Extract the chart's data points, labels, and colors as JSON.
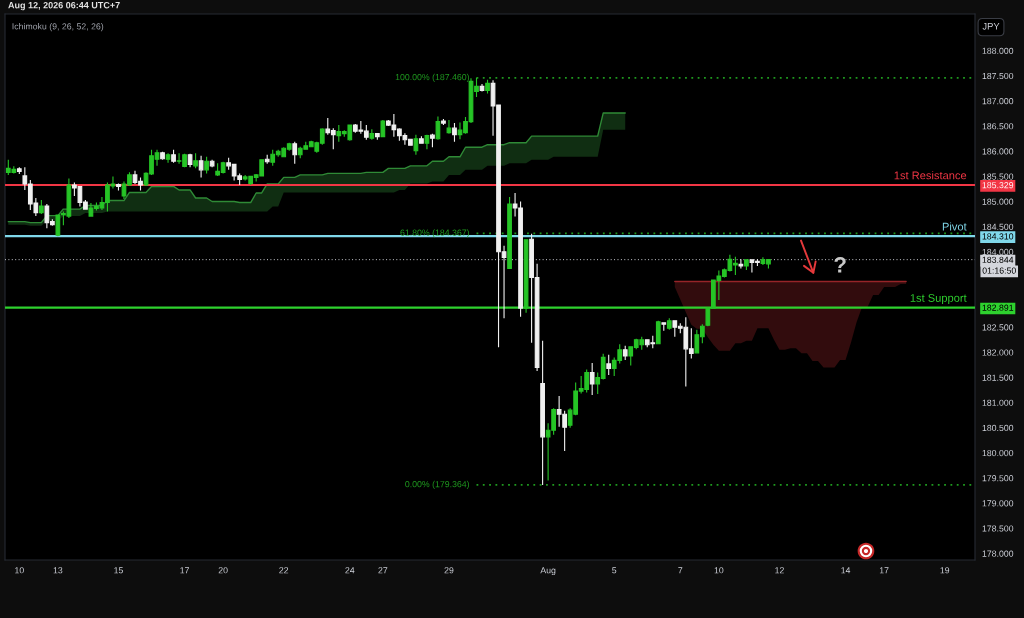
{
  "chart_data": {
    "type": "candlestick",
    "title": "Aug 12, 2026 06:44 UTC+7",
    "ylabel": "JPY",
    "categories": [
      null,
      null,
      "10",
      null,
      null,
      null,
      null,
      null,
      null,
      "13",
      null,
      null,
      null,
      null,
      null,
      null,
      null,
      null,
      null,
      null,
      "15",
      null,
      null,
      null,
      null,
      null,
      null,
      null,
      null,
      null,
      null,
      null,
      "17",
      null,
      null,
      null,
      null,
      null,
      null,
      "20",
      null,
      null,
      null,
      null,
      null,
      null,
      null,
      null,
      null,
      null,
      "22",
      null,
      null,
      null,
      null,
      null,
      null,
      null,
      null,
      null,
      null,
      null,
      "24",
      null,
      null,
      null,
      null,
      null,
      "27",
      null,
      null,
      null,
      null,
      null,
      null,
      null,
      null,
      null,
      null,
      null,
      "29",
      null,
      null,
      null,
      null,
      null,
      null,
      null,
      null,
      null,
      null,
      null,
      null,
      null,
      null,
      null,
      null,
      null,
      "Aug",
      null,
      null,
      null,
      null,
      null,
      null,
      null,
      null,
      null,
      null,
      null,
      "5",
      null,
      null,
      null,
      null,
      null,
      null,
      null,
      null,
      null,
      null,
      null,
      "7",
      null,
      null,
      null,
      null,
      null,
      null,
      "10",
      null,
      null,
      null,
      null,
      null,
      null,
      null,
      null,
      null,
      null,
      "12",
      null,
      null,
      null,
      null,
      null,
      null,
      null,
      null,
      null,
      null,
      null,
      "14",
      null,
      null,
      null,
      null,
      null,
      null,
      "17",
      null,
      null,
      null,
      null,
      null,
      null,
      null,
      null,
      null,
      null,
      "19",
      null,
      null,
      null,
      null,
      null
    ],
    "ohlc": [
      [
        185.58,
        185.83,
        185.53,
        185.66
      ],
      [
        185.58,
        185.7,
        185.56,
        185.64
      ],
      [
        185.65,
        185.68,
        185.55,
        185.6
      ],
      [
        185.51,
        185.68,
        185.23,
        185.35
      ],
      [
        185.35,
        185.43,
        184.83,
        184.95
      ],
      [
        184.97,
        185.07,
        184.71,
        184.78
      ],
      [
        184.78,
        185.03,
        184.75,
        184.91
      ],
      [
        184.91,
        184.95,
        184.47,
        184.58
      ],
      [
        184.6,
        184.65,
        184.52,
        184.54
      ],
      [
        184.33,
        184.73,
        184.31,
        184.73
      ],
      [
        184.74,
        184.8,
        184.53,
        184.76
      ],
      [
        184.71,
        185.46,
        184.67,
        185.33
      ],
      [
        185.33,
        185.38,
        185.11,
        185.27
      ],
      [
        185.3,
        185.31,
        184.9,
        184.98
      ],
      [
        184.99,
        185.03,
        184.85,
        184.85
      ],
      [
        184.71,
        184.97,
        184.7,
        184.87
      ],
      [
        184.86,
        184.98,
        184.82,
        184.9
      ],
      [
        184.87,
        185.09,
        184.83,
        184.98
      ],
      [
        184.98,
        185.38,
        184.8,
        185.33
      ],
      [
        185.31,
        185.5,
        185.26,
        185.35
      ],
      [
        185.34,
        185.36,
        185.22,
        185.3
      ],
      [
        185.11,
        185.4,
        185.05,
        185.35
      ],
      [
        185.33,
        185.58,
        185.31,
        185.53
      ],
      [
        185.53,
        185.61,
        185.35,
        185.38
      ],
      [
        185.4,
        185.48,
        185.22,
        185.33
      ],
      [
        185.33,
        185.58,
        185.31,
        185.56
      ],
      [
        185.55,
        186.03,
        185.53,
        185.91
      ],
      [
        185.84,
        186.03,
        185.71,
        185.97
      ],
      [
        185.97,
        185.99,
        185.83,
        185.85
      ],
      [
        185.84,
        185.96,
        185.77,
        185.93
      ],
      [
        185.93,
        186.03,
        185.77,
        185.8
      ],
      [
        185.8,
        185.96,
        185.75,
        185.81
      ],
      [
        185.7,
        185.95,
        185.68,
        185.93
      ],
      [
        185.93,
        185.95,
        185.68,
        185.74
      ],
      [
        185.71,
        185.96,
        185.66,
        185.81
      ],
      [
        185.81,
        185.91,
        185.48,
        185.63
      ],
      [
        185.63,
        185.89,
        185.56,
        185.8
      ],
      [
        185.8,
        185.83,
        185.68,
        185.71
      ],
      [
        185.53,
        185.76,
        185.51,
        185.6
      ],
      [
        185.58,
        185.79,
        185.56,
        185.77
      ],
      [
        185.77,
        185.87,
        185.63,
        185.71
      ],
      [
        185.74,
        185.75,
        185.42,
        185.51
      ],
      [
        185.51,
        185.56,
        185.33,
        185.44
      ],
      [
        185.45,
        185.53,
        185.42,
        185.49
      ],
      [
        185.36,
        185.51,
        185.33,
        185.5
      ],
      [
        185.48,
        185.55,
        185.4,
        185.53
      ],
      [
        185.51,
        185.84,
        185.5,
        185.83
      ],
      [
        185.84,
        185.93,
        185.75,
        185.79
      ],
      [
        185.78,
        186.03,
        185.71,
        185.94
      ],
      [
        185.93,
        186.03,
        185.89,
        186.0
      ],
      [
        185.89,
        186.08,
        185.88,
        186.06
      ],
      [
        186.04,
        186.17,
        186.01,
        186.15
      ],
      [
        186.15,
        186.19,
        185.75,
        185.93
      ],
      [
        185.93,
        186.09,
        185.86,
        186.06
      ],
      [
        186.04,
        186.19,
        186.03,
        186.11
      ],
      [
        186.09,
        186.21,
        186.08,
        186.19
      ],
      [
        186.0,
        186.19,
        185.97,
        186.17
      ],
      [
        186.16,
        186.46,
        186.13,
        186.44
      ],
      [
        186.44,
        186.66,
        186.33,
        186.37
      ],
      [
        186.41,
        186.46,
        186.04,
        186.33
      ],
      [
        186.31,
        186.52,
        186.19,
        186.39
      ],
      [
        186.35,
        186.42,
        186.29,
        186.39
      ],
      [
        186.23,
        186.52,
        186.21,
        186.52
      ],
      [
        186.52,
        186.54,
        186.37,
        186.4
      ],
      [
        186.42,
        186.6,
        186.35,
        186.4
      ],
      [
        186.4,
        186.52,
        186.23,
        186.28
      ],
      [
        186.26,
        186.44,
        186.23,
        186.35
      ],
      [
        186.35,
        186.36,
        186.23,
        186.29
      ],
      [
        186.29,
        186.62,
        186.28,
        186.6
      ],
      [
        186.6,
        186.62,
        186.5,
        186.52
      ],
      [
        186.52,
        186.74,
        186.29,
        186.43
      ],
      [
        186.44,
        186.46,
        186.21,
        186.31
      ],
      [
        186.31,
        186.36,
        186.13,
        186.23
      ],
      [
        186.24,
        186.25,
        186.11,
        186.12
      ],
      [
        186.01,
        186.33,
        185.93,
        186.25
      ],
      [
        186.25,
        186.3,
        186.15,
        186.16
      ],
      [
        186.16,
        186.33,
        186.04,
        186.31
      ],
      [
        186.32,
        186.35,
        186.08,
        186.26
      ],
      [
        186.25,
        186.69,
        186.23,
        186.59
      ],
      [
        186.6,
        186.64,
        186.52,
        186.56
      ],
      [
        186.37,
        186.62,
        186.35,
        186.46
      ],
      [
        186.46,
        186.56,
        186.19,
        186.33
      ],
      [
        186.33,
        186.57,
        186.24,
        186.42
      ],
      [
        186.37,
        186.68,
        186.35,
        186.59
      ],
      [
        186.59,
        187.45,
        186.56,
        187.39
      ],
      [
        187.19,
        187.46,
        187.08,
        187.29
      ],
      [
        187.29,
        187.34,
        187.19,
        187.21
      ],
      [
        187.21,
        187.42,
        187.15,
        187.35
      ],
      [
        187.35,
        187.41,
        186.31,
        186.9
      ],
      [
        186.92,
        186.92,
        182.1,
        184.0
      ],
      [
        184.0,
        184.12,
        182.68,
        183.89
      ],
      [
        183.67,
        185.09,
        183.67,
        184.95
      ],
      [
        184.95,
        185.17,
        184.7,
        184.87
      ],
      [
        184.87,
        185.0,
        182.71,
        182.88
      ],
      [
        182.88,
        184.24,
        182.79,
        184.24
      ],
      [
        184.25,
        184.36,
        182.19,
        183.49
      ],
      [
        183.49,
        183.76,
        181.63,
        181.7
      ],
      [
        181.38,
        182.23,
        179.364,
        180.32
      ],
      [
        180.32,
        180.59,
        179.45,
        180.45
      ],
      [
        180.45,
        180.89,
        180.36,
        180.86
      ],
      [
        180.86,
        181.13,
        180.52,
        180.77
      ],
      [
        180.77,
        180.84,
        180.04,
        180.51
      ],
      [
        180.55,
        180.89,
        180.5,
        180.85
      ],
      [
        180.77,
        181.4,
        180.75,
        181.23
      ],
      [
        181.23,
        181.53,
        181.18,
        181.28
      ],
      [
        181.26,
        181.66,
        181.2,
        181.6
      ],
      [
        181.6,
        181.79,
        181.15,
        181.37
      ],
      [
        181.37,
        181.6,
        181.17,
        181.5
      ],
      [
        181.48,
        181.97,
        181.46,
        181.9
      ],
      [
        181.77,
        181.95,
        181.55,
        181.68
      ],
      [
        181.68,
        181.9,
        181.53,
        181.84
      ],
      [
        181.84,
        182.16,
        181.78,
        182.05
      ],
      [
        182.05,
        182.13,
        181.85,
        181.93
      ],
      [
        181.93,
        182.11,
        181.74,
        182.11
      ],
      [
        182.1,
        182.27,
        182.06,
        182.25
      ],
      [
        182.15,
        182.31,
        182.05,
        182.25
      ],
      [
        182.25,
        182.26,
        182.1,
        182.15
      ],
      [
        182.19,
        182.33,
        182.08,
        182.17
      ],
      [
        182.17,
        182.63,
        182.17,
        182.61
      ],
      [
        182.59,
        182.59,
        182.43,
        182.56
      ],
      [
        182.48,
        182.68,
        182.45,
        182.63
      ],
      [
        182.63,
        182.63,
        182.31,
        182.5
      ],
      [
        182.52,
        182.58,
        182.38,
        182.48
      ],
      [
        182.5,
        182.7,
        181.32,
        182.07
      ],
      [
        182.07,
        182.48,
        181.88,
        181.98
      ],
      [
        181.99,
        182.45,
        181.98,
        182.35
      ],
      [
        182.31,
        182.56,
        182.18,
        182.52
      ],
      [
        182.54,
        182.9,
        182.52,
        182.88
      ],
      [
        182.88,
        183.45,
        182.88,
        183.44
      ],
      [
        183.43,
        183.63,
        183.04,
        183.52
      ],
      [
        183.51,
        183.67,
        183.49,
        183.64
      ],
      [
        183.63,
        183.94,
        183.61,
        183.85
      ],
      [
        183.74,
        183.9,
        183.54,
        183.77
      ],
      [
        183.75,
        183.85,
        183.67,
        183.72
      ],
      [
        183.72,
        183.85,
        183.64,
        183.84
      ],
      [
        183.84,
        183.85,
        183.59,
        183.79
      ],
      [
        183.81,
        183.85,
        183.72,
        183.79
      ],
      [
        183.77,
        183.89,
        183.74,
        183.84
      ],
      [
        183.76,
        183.85,
        183.67,
        183.844
      ],
      null,
      null,
      null,
      null,
      null,
      null,
      null,
      null,
      null,
      null,
      null,
      null,
      null,
      null,
      null,
      null,
      null,
      null,
      null,
      null,
      null,
      null,
      null,
      null,
      null,
      null,
      null,
      null,
      null,
      null,
      null,
      null,
      null,
      null,
      null,
      null,
      null
    ],
    "colors": [
      "#26c426",
      "#26c426",
      "#f0f0f0",
      "#f0f0f0",
      "#f0f0f0",
      "#f0f0f0",
      "#26c426",
      "#f0f0f0",
      "#f0f0f0",
      "#26c426",
      "#26c426",
      "#26c426",
      "#f0f0f0",
      "#f0f0f0",
      "#f0f0f0",
      "#26c426",
      "#26c426",
      "#26c426",
      "#26c426",
      "#26c426",
      "#f0f0f0",
      "#26c426",
      "#26c426",
      "#f0f0f0",
      "#f0f0f0",
      "#26c426",
      "#26c426",
      "#26c426",
      "#f0f0f0",
      "#26c426",
      "#f0f0f0",
      "#26c426",
      "#26c426",
      "#f0f0f0",
      "#26c426",
      "#f0f0f0",
      "#26c426",
      "#f0f0f0",
      "#26c426",
      "#26c426",
      "#f0f0f0",
      "#f0f0f0",
      "#f0f0f0",
      "#26c426",
      "#26c426",
      "#26c426",
      "#26c426",
      "#f0f0f0",
      "#26c426",
      "#26c426",
      "#26c426",
      "#26c426",
      "#f0f0f0",
      "#26c426",
      "#26c426",
      "#26c426",
      "#26c426",
      "#26c426",
      "#f0f0f0",
      "#f0f0f0",
      "#26c426",
      "#26c426",
      "#26c426",
      "#f0f0f0",
      "#f0f0f0",
      "#f0f0f0",
      "#26c426",
      "#f0f0f0",
      "#26c426",
      "#f0f0f0",
      "#f0f0f0",
      "#f0f0f0",
      "#f0f0f0",
      "#f0f0f0",
      "#26c426",
      "#f0f0f0",
      "#26c426",
      "#f0f0f0",
      "#26c426",
      "#f0f0f0",
      "#26c426",
      "#f0f0f0",
      "#26c426",
      "#26c426",
      "#26c426",
      "#26c426",
      "#f0f0f0",
      "#26c426",
      "#f0f0f0",
      "#f0f0f0",
      "#f0f0f0",
      "#26c426",
      "#f0f0f0",
      "#f0f0f0",
      "#26c426",
      "#f0f0f0",
      "#f0f0f0",
      "#f0f0f0",
      "#26c426",
      "#26c426",
      "#f0f0f0",
      "#f0f0f0",
      "#26c426",
      "#26c426",
      "#26c426",
      "#26c426",
      "#f0f0f0",
      "#26c426",
      "#26c426",
      "#f0f0f0",
      "#26c426",
      "#26c426",
      "#f0f0f0",
      "#26c426",
      "#26c426",
      "#26c426",
      "#f0f0f0",
      "#f0f0f0",
      "#26c426",
      "#f0f0f0",
      "#26c426",
      "#f0f0f0",
      "#f0f0f0",
      "#f0f0f0",
      "#f0f0f0",
      "#26c426",
      "#26c426",
      "#26c426",
      "#26c426",
      "#26c426",
      "#26c426",
      "#26c426",
      "#26c426",
      "#f0f0f0",
      "#26c426",
      "#f0f0f0",
      "#f0f0f0",
      "#26c426",
      "#26c426",
      null,
      null,
      null,
      null,
      null,
      null,
      null,
      null,
      null,
      null,
      null,
      null,
      null,
      null,
      null,
      null,
      null,
      null,
      null,
      null,
      null,
      null,
      null,
      null,
      null,
      null,
      null,
      null,
      null,
      null,
      null,
      null,
      null,
      null,
      null,
      null,
      null
    ],
    "series": [
      {
        "type": "line",
        "color": "#2f8a36",
        "values": [
          184.6,
          184.6,
          184.6,
          184.6,
          184.58,
          184.58,
          184.58,
          184.72,
          184.72,
          184.72,
          184.85,
          184.85,
          184.85,
          184.85,
          184.92,
          184.92,
          184.92,
          184.92,
          185.02,
          185.02,
          185.02,
          185.02,
          185.18,
          185.18,
          185.18,
          185.18,
          185.3,
          185.3,
          185.3,
          185.3,
          185.3,
          185.23,
          185.23,
          185.23,
          185.07,
          185.07,
          185.07,
          185.0,
          185.0,
          185.0,
          185.0,
          185.0,
          184.98,
          184.98,
          184.98,
          185.17,
          185.17,
          185.35,
          185.35,
          185.35,
          185.48,
          185.48,
          185.48,
          185.53,
          185.53,
          185.53,
          185.53,
          185.53,
          185.56,
          185.56,
          185.56,
          185.56,
          185.56,
          185.56,
          185.56,
          185.58,
          185.58,
          185.58,
          185.58,
          185.66,
          185.66,
          185.66,
          185.66,
          185.71,
          185.71,
          185.71,
          185.71,
          185.8,
          185.8,
          185.8,
          185.89,
          185.89,
          185.89,
          186.08,
          186.08,
          186.08,
          186.08,
          186.13,
          186.13,
          186.13,
          186.13,
          186.17,
          186.17,
          186.17,
          186.17,
          186.3,
          186.3,
          186.3,
          186.3,
          186.3,
          186.3,
          186.3,
          186.3,
          186.3,
          186.3,
          186.3,
          186.3,
          186.3,
          186.76,
          186.76,
          186.76,
          186.76,
          186.76,
          null,
          null,
          null,
          null,
          null,
          null,
          null,
          null,
          null,
          null,
          null,
          null,
          null,
          null,
          null,
          null,
          null,
          null,
          null,
          null,
          null,
          null,
          null,
          null,
          null,
          null,
          null,
          null,
          null,
          null,
          null,
          null,
          null,
          null,
          null,
          null,
          null,
          null,
          null,
          null,
          null,
          null,
          null,
          null,
          null,
          null,
          null,
          null,
          null,
          null,
          null,
          null,
          null,
          null,
          null,
          null,
          null,
          null,
          null,
          null,
          null,
          null,
          null
        ],
        "upper": [
          184.6,
          184.6,
          184.6,
          184.6,
          184.58,
          184.58,
          184.58,
          184.72,
          184.72,
          184.72,
          184.85,
          184.85,
          184.85,
          184.85,
          184.92,
          184.92,
          184.92,
          184.92,
          185.02,
          185.02,
          185.02,
          185.02,
          185.18,
          185.18,
          185.18,
          185.18,
          185.3,
          185.3,
          185.3,
          185.3,
          185.3,
          185.23,
          185.23,
          185.23,
          185.07,
          185.07,
          185.07,
          185.0,
          185.0,
          185.0,
          185.0,
          185.0,
          184.98,
          184.98,
          184.98,
          185.17,
          185.17,
          185.35,
          185.35,
          185.35,
          185.48,
          185.48,
          185.48,
          185.53,
          185.53,
          185.53,
          185.53,
          185.53,
          185.56,
          185.56,
          185.56,
          185.56,
          185.56,
          185.56,
          185.56,
          185.58,
          185.58,
          185.58,
          185.58,
          185.66,
          185.66,
          185.66,
          185.66,
          185.71,
          185.71,
          185.71,
          185.71,
          185.8,
          185.8,
          185.8,
          185.89,
          185.89,
          185.89,
          186.08,
          186.08,
          186.08,
          186.08,
          186.13,
          186.13,
          186.13,
          186.13,
          186.17,
          186.17,
          186.17,
          186.17,
          186.3,
          186.3,
          186.3,
          186.3,
          186.3,
          186.3,
          186.3,
          186.3,
          186.3,
          186.3,
          186.3,
          186.3,
          186.3,
          186.76,
          186.76,
          186.76,
          186.76,
          186.76,
          null,
          null,
          null,
          null,
          null,
          null,
          null,
          null,
          null,
          null,
          null,
          null,
          null,
          null,
          null,
          null,
          null,
          null,
          null,
          null,
          null,
          null,
          null,
          null,
          null,
          null,
          null,
          null,
          null,
          null,
          null,
          null,
          null,
          null,
          null,
          null,
          null,
          null,
          null,
          null,
          null,
          null,
          null,
          null,
          null,
          null,
          null,
          null,
          null,
          null,
          null,
          null,
          null,
          null,
          null,
          null,
          null,
          null,
          null,
          null,
          null,
          null,
          null
        ],
        "lower": [
          184.54,
          184.54,
          184.54,
          184.54,
          184.52,
          184.52,
          184.52,
          184.62,
          184.62,
          184.62,
          184.71,
          184.71,
          184.71,
          184.71,
          184.77,
          184.77,
          184.77,
          184.77,
          184.8,
          184.8,
          184.8,
          184.8,
          184.8,
          184.8,
          184.8,
          184.8,
          184.8,
          184.8,
          184.8,
          184.8,
          184.8,
          184.8,
          184.8,
          184.8,
          184.8,
          184.8,
          184.8,
          184.8,
          184.8,
          184.8,
          184.8,
          184.8,
          184.8,
          184.8,
          184.8,
          184.8,
          184.8,
          184.8,
          184.9,
          184.9,
          185.18,
          185.18,
          185.18,
          185.18,
          185.18,
          185.18,
          185.18,
          185.18,
          185.18,
          185.18,
          185.18,
          185.18,
          185.18,
          185.18,
          185.18,
          185.18,
          185.18,
          185.18,
          185.18,
          185.18,
          185.18,
          185.23,
          185.23,
          185.36,
          185.36,
          185.36,
          185.36,
          185.4,
          185.4,
          185.4,
          185.53,
          185.53,
          185.53,
          185.63,
          185.63,
          185.63,
          185.63,
          185.71,
          185.71,
          185.71,
          185.71,
          185.76,
          185.76,
          185.76,
          185.76,
          185.83,
          185.83,
          185.83,
          185.83,
          185.89,
          185.89,
          185.89,
          185.89,
          185.89,
          185.89,
          185.89,
          185.89,
          185.89,
          186.43,
          186.43,
          186.43,
          186.43,
          186.43,
          null,
          null,
          null,
          null,
          null,
          null,
          null,
          null,
          null,
          null,
          null,
          null,
          null,
          null,
          null,
          null,
          null,
          null,
          null,
          null,
          null,
          null,
          null,
          null,
          null,
          null,
          null,
          null,
          null,
          null,
          null,
          null,
          null,
          null,
          null,
          null,
          null,
          null,
          null,
          null,
          null,
          null,
          null,
          null,
          null,
          null,
          null,
          null,
          null,
          null,
          null,
          null,
          null,
          null,
          null,
          null,
          null,
          null,
          null,
          null,
          null,
          null,
          null
        ]
      },
      {
        "type": "line",
        "color": "#962428",
        "values": [
          null,
          null,
          null,
          null,
          null,
          null,
          null,
          null,
          null,
          null,
          null,
          null,
          null,
          null,
          null,
          null,
          null,
          null,
          null,
          null,
          null,
          null,
          null,
          null,
          null,
          null,
          null,
          null,
          null,
          null,
          null,
          null,
          null,
          null,
          null,
          null,
          null,
          null,
          null,
          null,
          null,
          null,
          null,
          null,
          null,
          null,
          null,
          null,
          null,
          null,
          null,
          null,
          null,
          null,
          null,
          null,
          null,
          null,
          null,
          null,
          null,
          null,
          null,
          null,
          null,
          null,
          null,
          null,
          null,
          null,
          null,
          null,
          null,
          null,
          null,
          null,
          null,
          null,
          null,
          null,
          null,
          null,
          null,
          null,
          null,
          null,
          null,
          null,
          null,
          null,
          null,
          null,
          null,
          null,
          null,
          null,
          null,
          null,
          null,
          null,
          null,
          null,
          null,
          null,
          null,
          null,
          null,
          null,
          null,
          null,
          null,
          null,
          null,
          null,
          null,
          null,
          null,
          null,
          null,
          null,
          null,
          183.41,
          183.41,
          183.41,
          183.41,
          183.41,
          183.41,
          183.41,
          183.41,
          183.41,
          183.41,
          183.41,
          183.41,
          183.41,
          183.41,
          183.41,
          183.41,
          183.41,
          183.41,
          183.41,
          183.41,
          183.41,
          183.41,
          183.41,
          183.41,
          183.41,
          183.41,
          183.41,
          183.41,
          183.41,
          183.41,
          183.41,
          183.41,
          183.41,
          183.41,
          183.41,
          183.41,
          183.41,
          183.41,
          183.41,
          183.41,
          183.41,
          183.41,
          183.41,
          null,
          null,
          null,
          null,
          null,
          null,
          null,
          null,
          null,
          null,
          null,
          null
        ],
        "upper": [
          null,
          null,
          null,
          null,
          null,
          null,
          null,
          null,
          null,
          null,
          null,
          null,
          null,
          null,
          null,
          null,
          null,
          null,
          null,
          null,
          null,
          null,
          null,
          null,
          null,
          null,
          null,
          null,
          null,
          null,
          null,
          null,
          null,
          null,
          null,
          null,
          null,
          null,
          null,
          null,
          null,
          null,
          null,
          null,
          null,
          null,
          null,
          null,
          null,
          null,
          null,
          null,
          null,
          null,
          null,
          null,
          null,
          null,
          null,
          null,
          null,
          null,
          null,
          null,
          null,
          null,
          null,
          null,
          null,
          null,
          null,
          null,
          null,
          null,
          null,
          null,
          null,
          null,
          null,
          null,
          null,
          null,
          null,
          null,
          null,
          null,
          null,
          null,
          null,
          null,
          null,
          null,
          null,
          null,
          null,
          null,
          null,
          null,
          null,
          null,
          null,
          null,
          null,
          null,
          null,
          null,
          null,
          null,
          null,
          null,
          null,
          null,
          null,
          null,
          null,
          null,
          null,
          null,
          null,
          null,
          null,
          183.41,
          183.41,
          183.41,
          183.41,
          183.41,
          183.41,
          183.41,
          183.41,
          183.41,
          183.41,
          183.41,
          183.41,
          183.41,
          183.41,
          183.41,
          183.41,
          183.41,
          183.41,
          183.41,
          183.41,
          183.41,
          183.41,
          183.41,
          183.41,
          183.41,
          183.41,
          183.41,
          183.41,
          183.41,
          183.41,
          183.41,
          183.41,
          183.41,
          183.41,
          183.41,
          183.41,
          183.41,
          183.41,
          183.41,
          183.41,
          183.41,
          183.41,
          183.41,
          null,
          null,
          null,
          null,
          null,
          null,
          null,
          null,
          null,
          null,
          null,
          null
        ],
        "lower": [
          null,
          null,
          null,
          null,
          null,
          null,
          null,
          null,
          null,
          null,
          null,
          null,
          null,
          null,
          null,
          null,
          null,
          null,
          null,
          null,
          null,
          null,
          null,
          null,
          null,
          null,
          null,
          null,
          null,
          null,
          null,
          null,
          null,
          null,
          null,
          null,
          null,
          null,
          null,
          null,
          null,
          null,
          null,
          null,
          null,
          null,
          null,
          null,
          null,
          null,
          null,
          null,
          null,
          null,
          null,
          null,
          null,
          null,
          null,
          null,
          null,
          null,
          null,
          null,
          null,
          null,
          null,
          null,
          null,
          null,
          null,
          null,
          null,
          null,
          null,
          null,
          null,
          null,
          null,
          null,
          null,
          null,
          null,
          null,
          null,
          null,
          null,
          null,
          null,
          null,
          null,
          null,
          null,
          null,
          null,
          null,
          null,
          null,
          null,
          null,
          null,
          null,
          null,
          null,
          null,
          null,
          null,
          null,
          null,
          null,
          null,
          null,
          null,
          null,
          null,
          null,
          null,
          null,
          null,
          null,
          null,
          183.3,
          183.05,
          182.8,
          182.55,
          182.47,
          182.47,
          182.3,
          182.15,
          182.03,
          182.03,
          182.03,
          182.18,
          182.18,
          182.23,
          182.23,
          182.48,
          182.48,
          182.48,
          182.25,
          182.05,
          182.05,
          182.08,
          182.08,
          181.98,
          181.98,
          181.83,
          181.83,
          181.7,
          181.7,
          181.7,
          181.85,
          181.85,
          182.2,
          182.6,
          182.9,
          182.9,
          183.14,
          183.14,
          183.3,
          183.3,
          183.3,
          183.36,
          183.36,
          null,
          null,
          null,
          null,
          null,
          null,
          null,
          null,
          null,
          null,
          null,
          null
        ]
      }
    ],
    "ylim": [
      177.87,
      188.73
    ],
    "yticks": [
      {
        "value": 178,
        "label": "178.000"
      },
      {
        "value": 178.5,
        "label": "178.500"
      },
      {
        "value": 179,
        "label": "179.000"
      },
      {
        "value": 179.5,
        "label": "179.500"
      },
      {
        "value": 180,
        "label": "180.000"
      },
      {
        "value": 180.5,
        "label": "180.500"
      },
      {
        "value": 181,
        "label": "181.000"
      },
      {
        "value": 181.5,
        "label": "181.500"
      },
      {
        "value": 182,
        "label": "182.000"
      },
      {
        "value": 182.5,
        "label": "182.500"
      },
      {
        "value": 184,
        "label": "184.000"
      },
      {
        "value": 184.5,
        "label": "184.500"
      },
      {
        "value": 185,
        "label": "185.000"
      },
      {
        "value": 185.5,
        "label": "185.500"
      },
      {
        "value": 186,
        "label": "186.000"
      },
      {
        "value": 186.5,
        "label": "186.500"
      },
      {
        "value": 187,
        "label": "187.000"
      },
      {
        "value": 187.5,
        "label": "187.500"
      },
      {
        "value": 188,
        "label": "188.000"
      },
      {
        "value": 185.329,
        "label": "185.329"
      },
      {
        "value": 184.31,
        "label": "184.310"
      },
      {
        "value": 182.891,
        "label": "182.891"
      },
      {
        "value": 183.844,
        "label": "183.844"
      }
    ],
    "ref_lines": [
      {
        "axis": "y",
        "value": 187.46,
        "label": "100.00% (187.460)",
        "color": "#1f9a1f",
        "line_style": "dotted"
      },
      {
        "axis": "y",
        "value": 184.367,
        "label": "61.80% (184.367)",
        "color": "#1f9a1f",
        "line_style": "dotted"
      },
      {
        "axis": "y",
        "value": 179.364,
        "label": "0.00% (179.364)",
        "color": "#1f9a1f",
        "line_style": "dotted"
      },
      {
        "axis": "y",
        "value": 185.329,
        "label": "1st Resistance",
        "color": "#f23645",
        "line_style": "solid"
      },
      {
        "axis": "y",
        "value": 184.31,
        "label": "Pivot",
        "color": "#80d8ea",
        "line_style": "solid"
      },
      {
        "axis": "y",
        "value": 182.891,
        "label": "1st Support",
        "color": "#2ed12e",
        "line_style": "solid"
      },
      {
        "axis": "y",
        "value": 183.844,
        "color": "#d4d6dc",
        "line_style": "dotted"
      }
    ],
    "annotations": [
      "Ichimoku (9, 26, 52, 26)",
      "01:16:50",
      "?"
    ]
  }
}
